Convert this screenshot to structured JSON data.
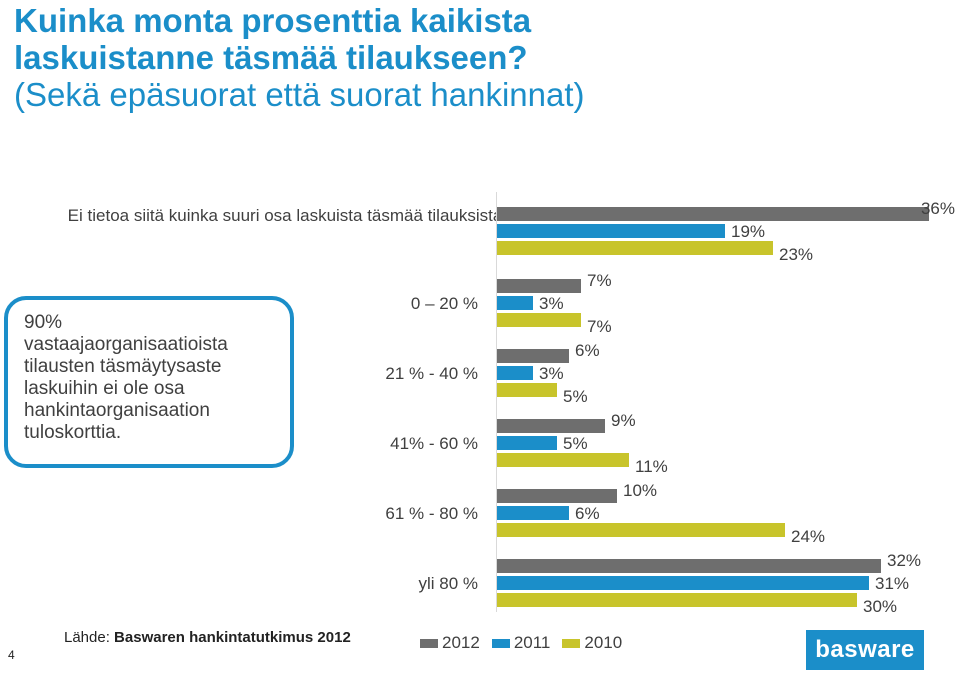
{
  "title": {
    "line1": "Kuinka monta prosenttia kaikista",
    "line2": "laskuistanne täsmää tilaukseen?",
    "line3": "(Sekä epäsuorat että suorat hankinnat)"
  },
  "note": {
    "lines": [
      "90%",
      "vastaajaorganisaatioista",
      "tilausten täsmäytysaste",
      "laskuihin ei ole osa",
      "hankintaorganisaation",
      "tuloskorttia."
    ]
  },
  "source": {
    "prefix": "Lähde: ",
    "name": "Baswaren hankintatutkimus 2012"
  },
  "page_number": "4",
  "logo_text": "basware",
  "colors": {
    "2012": "#6e6e6e",
    "2011": "#1b8ec9",
    "2010": "#c8c42b"
  },
  "chart_data": {
    "type": "bar",
    "orientation": "horizontal",
    "categories": [
      "Ei tietoa siitä kuinka suuri osa laskuista täsmää tilauksista",
      "0 – 20 %",
      "21 % - 40 %",
      "41% - 60  %",
      "61 % - 80 %",
      "yli 80 %"
    ],
    "series": [
      {
        "name": "2012",
        "values": [
          36,
          7,
          6,
          9,
          10,
          32
        ],
        "labels": [
          "36%",
          "7%",
          "6%",
          "9%",
          "10%",
          "32%"
        ]
      },
      {
        "name": "2011",
        "values": [
          19,
          3,
          3,
          5,
          6,
          31
        ],
        "labels": [
          "19%",
          "3%",
          "3%",
          "5%",
          "6%",
          "31%"
        ]
      },
      {
        "name": "2010",
        "values": [
          23,
          7,
          5,
          11,
          24,
          30
        ],
        "labels": [
          "23%",
          "7%",
          "5%",
          "11%",
          "24%",
          "30%"
        ]
      }
    ],
    "xlim": [
      0,
      36
    ],
    "legend_position": "bottom"
  }
}
